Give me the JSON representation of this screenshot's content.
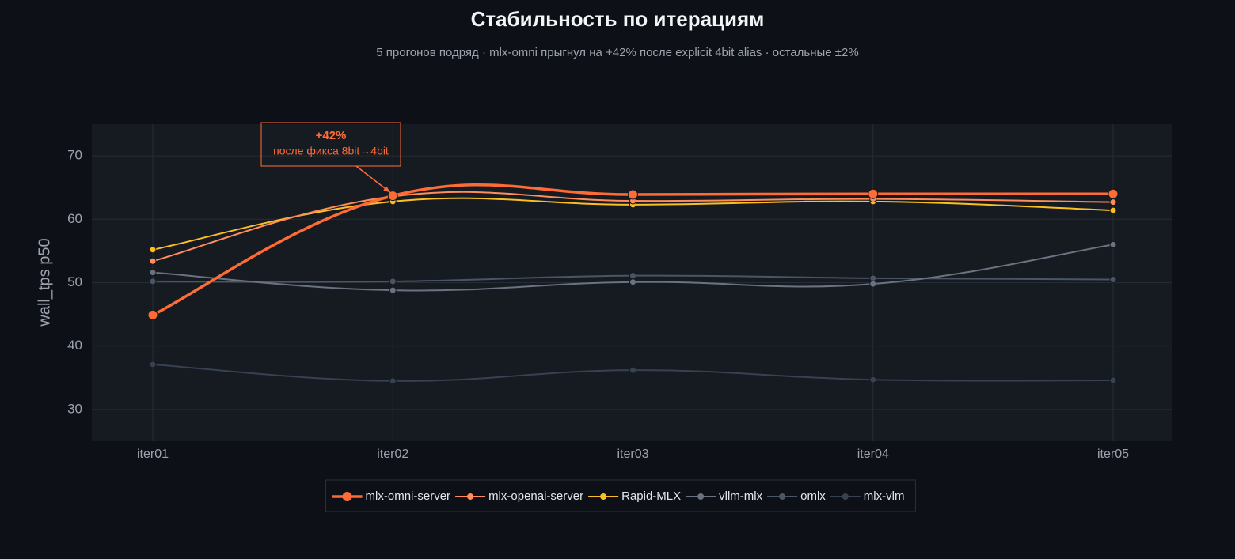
{
  "chart_data": {
    "type": "line",
    "title": "Стабильность по итерациям",
    "subtitle": "5 прогонов подряд · mlx-omni прыгнул на +42% после explicit 4bit alias · остальные ±2%",
    "y_label": "wall_tps p50",
    "categories": [
      "iter01",
      "iter02",
      "iter03",
      "iter04",
      "iter05"
    ],
    "series": [
      {
        "name": "mlx-omni-server",
        "color": "#ff6b35",
        "values": [
          44.9,
          63.7,
          63.9,
          64.0,
          64.0
        ]
      },
      {
        "name": "mlx-openai-server",
        "color": "#ff8c5a",
        "values": [
          53.4,
          63.6,
          62.9,
          63.2,
          62.7
        ]
      },
      {
        "name": "Rapid-MLX",
        "color": "#fbbf24",
        "values": [
          55.2,
          62.8,
          62.3,
          62.8,
          61.4
        ]
      },
      {
        "name": "vllm-mlx",
        "color": "#6b7280",
        "values": [
          51.6,
          48.8,
          50.1,
          49.8,
          56.0
        ]
      },
      {
        "name": "omlx",
        "color": "#4b5563",
        "values": [
          50.2,
          50.2,
          51.1,
          50.7,
          50.5
        ]
      },
      {
        "name": "mlx-vlm",
        "color": "#374151",
        "values": [
          37.1,
          34.5,
          36.2,
          34.7,
          34.6
        ]
      }
    ],
    "ylim": [
      25,
      75
    ],
    "yticks": [
      30,
      40,
      50,
      60,
      70
    ],
    "grid": true,
    "legend": "bottom",
    "annotations": [
      {
        "title": "+42%",
        "text": "после фикса 8bit→4bit"
      }
    ]
  }
}
